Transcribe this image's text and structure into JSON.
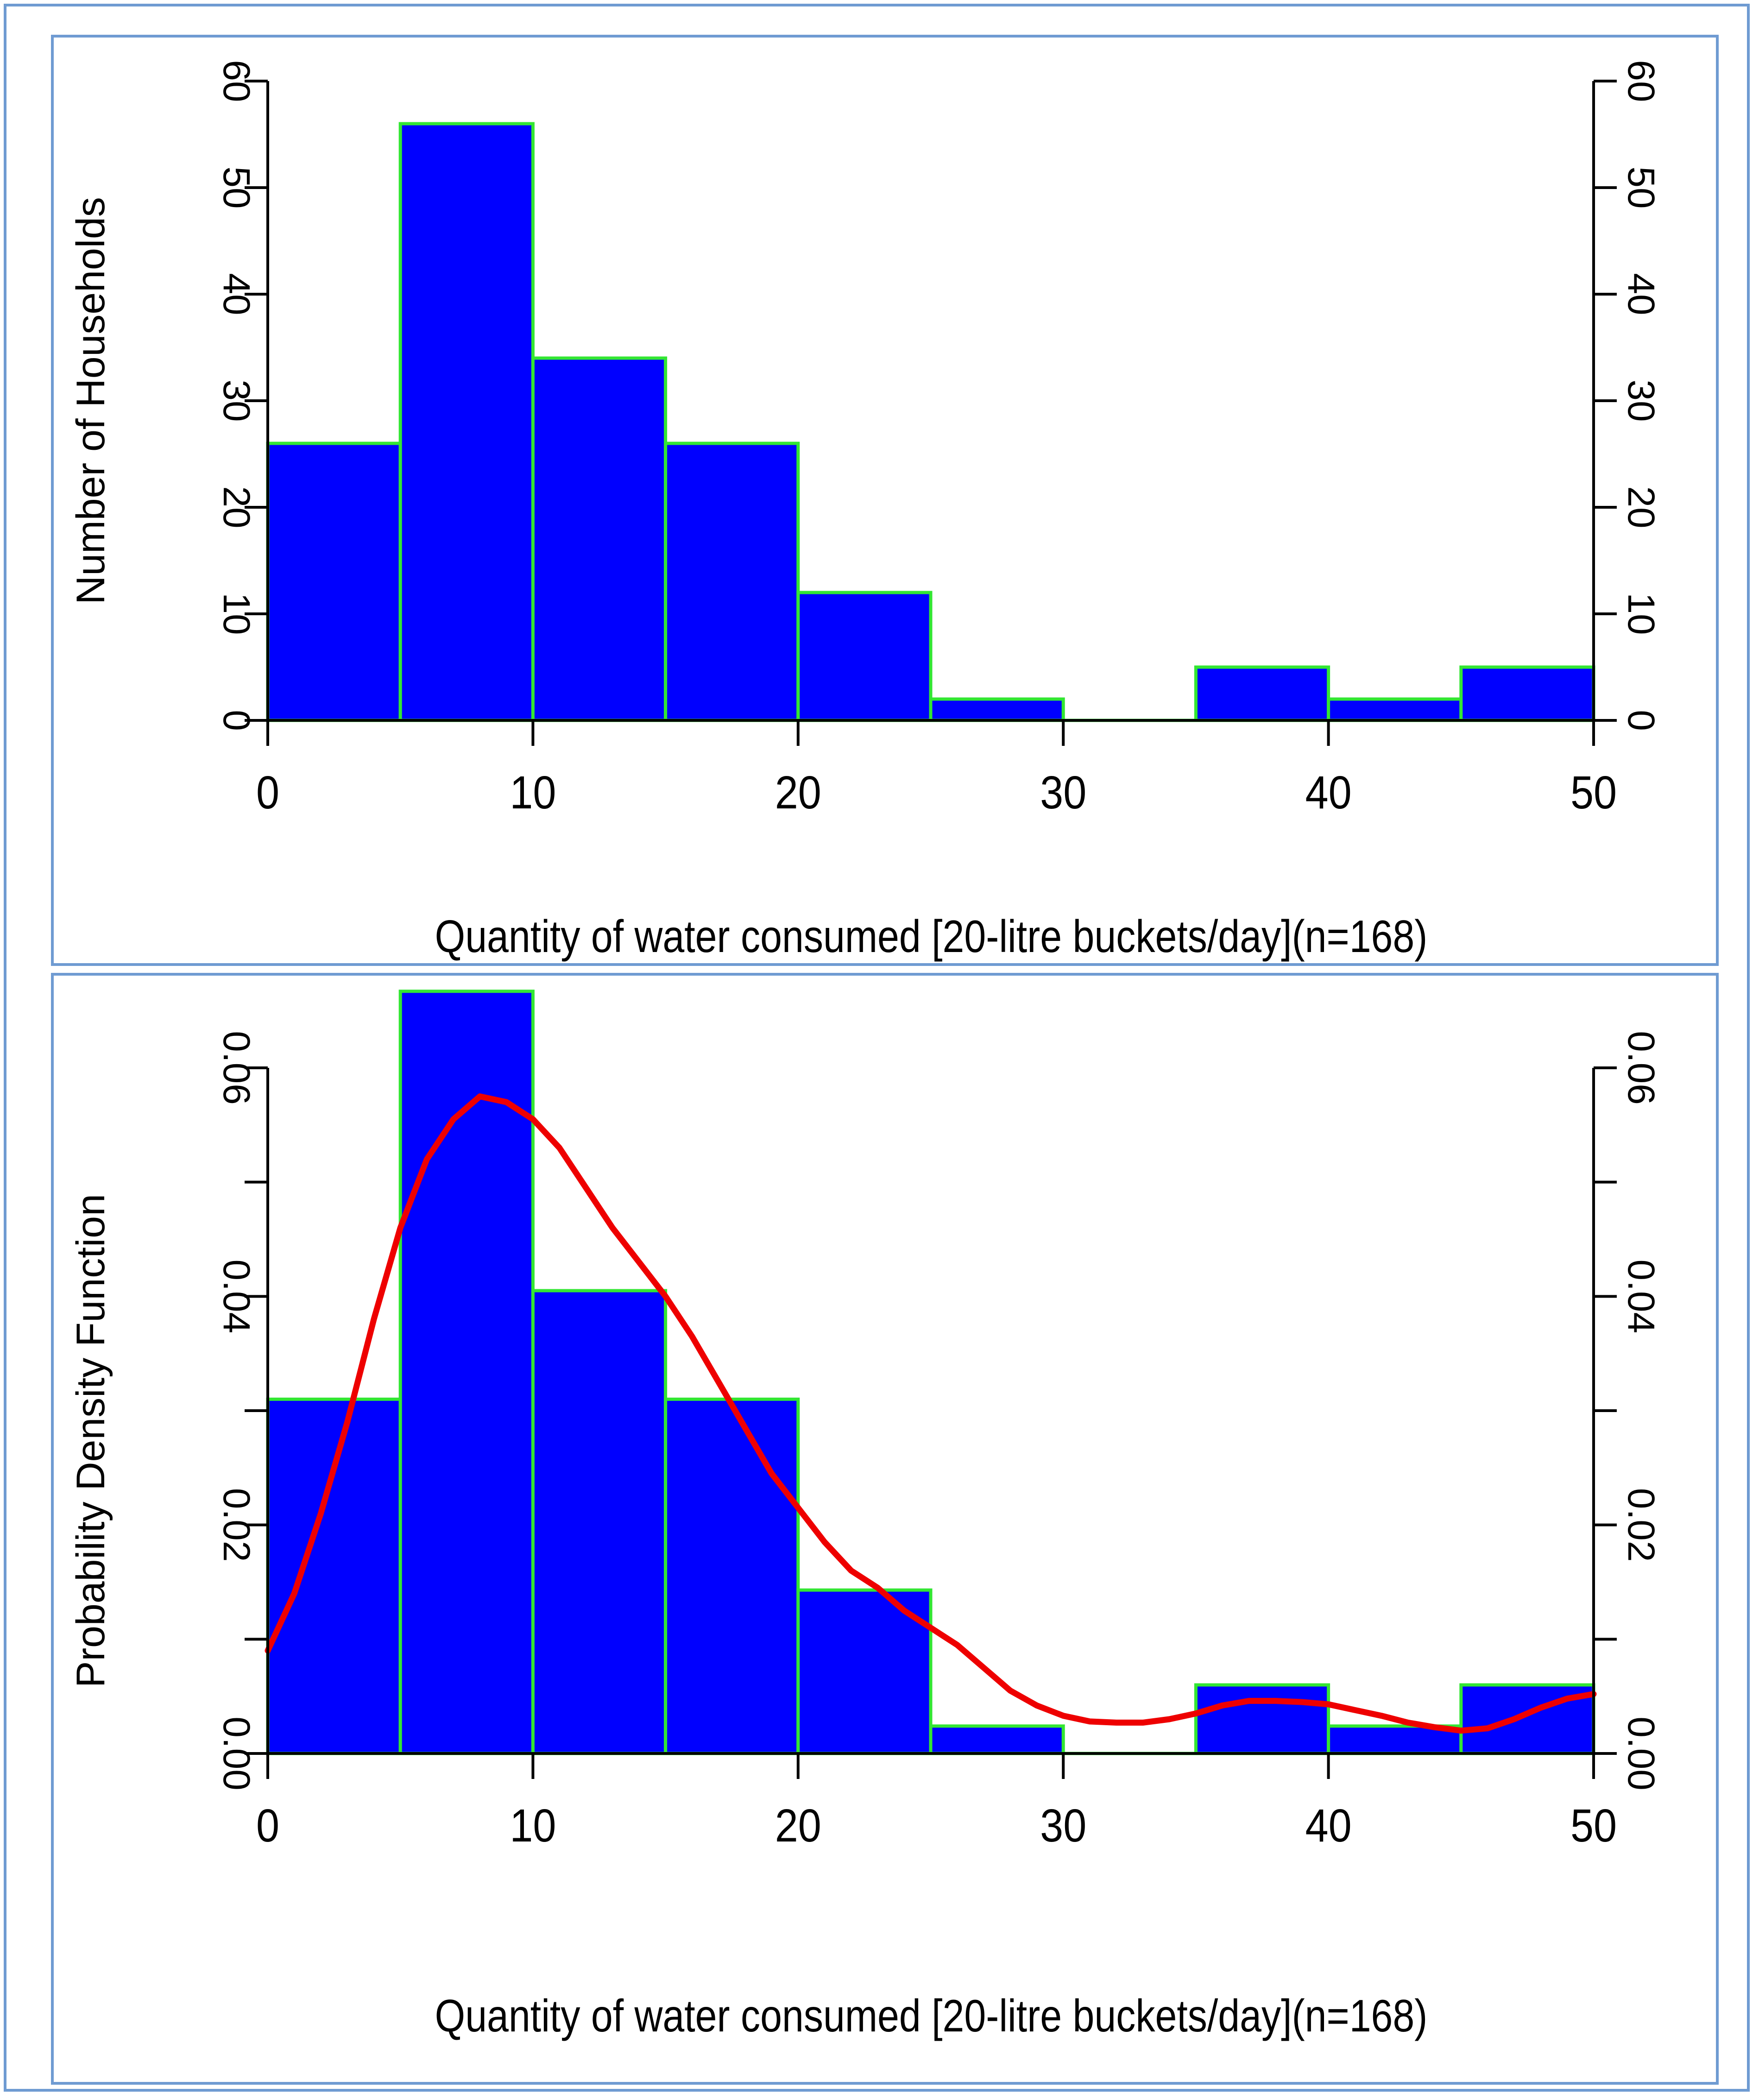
{
  "chart_data": [
    {
      "type": "bar",
      "subtype": "histogram",
      "bin_edges": [
        0,
        5,
        10,
        15,
        20,
        25,
        30,
        35,
        40,
        45,
        50
      ],
      "values": [
        26,
        56,
        34,
        26,
        12,
        2,
        0,
        5,
        2,
        5
      ],
      "xlabel": "Quantity of water consumed [20-litre buckets/day](n=168)",
      "ylabel": "Number of Households",
      "xlim": [
        0,
        50
      ],
      "ylim": [
        0,
        60
      ],
      "xticks": [
        "0",
        "10",
        "20",
        "30",
        "40",
        "50"
      ],
      "yticks": [
        "0",
        "10",
        "20",
        "30",
        "40",
        "50",
        "60"
      ],
      "right_axis": true,
      "colors": {
        "bar_fill": "#0000ff",
        "bar_edge": "#33e633",
        "axis": "#000000"
      }
    },
    {
      "type": "bar",
      "subtype": "density histogram with kernel density curve",
      "bin_edges": [
        0,
        5,
        10,
        15,
        20,
        25,
        30,
        35,
        40,
        45,
        50
      ],
      "values": [
        0.031,
        0.0667,
        0.0405,
        0.031,
        0.0143,
        0.0024,
        0,
        0.006,
        0.0024,
        0.006
      ],
      "density_curve": {
        "name": "Kernel density",
        "x": [
          0,
          1,
          2,
          3,
          4,
          5,
          6,
          7,
          8,
          9,
          10,
          11,
          12,
          13,
          14,
          15,
          16,
          17,
          18,
          19,
          20,
          21,
          22,
          23,
          24,
          25,
          26,
          27,
          28,
          29,
          30,
          31,
          32,
          33,
          34,
          35,
          36,
          37,
          38,
          39,
          40,
          41,
          42,
          43,
          44,
          45,
          46,
          47,
          48,
          49,
          50
        ],
        "y": [
          0.009,
          0.014,
          0.021,
          0.029,
          0.038,
          0.046,
          0.052,
          0.0555,
          0.0575,
          0.057,
          0.0555,
          0.053,
          0.0495,
          0.046,
          0.043,
          0.04,
          0.0365,
          0.0325,
          0.0285,
          0.0245,
          0.0215,
          0.0185,
          0.016,
          0.0145,
          0.0125,
          0.011,
          0.0095,
          0.0075,
          0.0055,
          0.0042,
          0.0033,
          0.0028,
          0.0027,
          0.0027,
          0.003,
          0.0035,
          0.0042,
          0.0046,
          0.0046,
          0.0045,
          0.0043,
          0.0038,
          0.0033,
          0.0027,
          0.0023,
          0.002,
          0.0022,
          0.003,
          0.004,
          0.0048,
          0.0052
        ],
        "color": "#ee0000"
      },
      "xlabel": "Quantity of water consumed [20-litre buckets/day](n=168)",
      "ylabel": "Probability Density Function",
      "xlim": [
        0,
        50
      ],
      "ylim": [
        0,
        0.06
      ],
      "xticks": [
        "0",
        "10",
        "20",
        "30",
        "40",
        "50"
      ],
      "yticks": [
        "0.00",
        "0.02",
        "0.04",
        "0.06"
      ],
      "yticks_minor": [
        0.01,
        0.03,
        0.05
      ],
      "right_axis": true,
      "colors": {
        "bar_fill": "#0000ff",
        "bar_edge": "#33e633",
        "axis": "#000000"
      }
    }
  ]
}
